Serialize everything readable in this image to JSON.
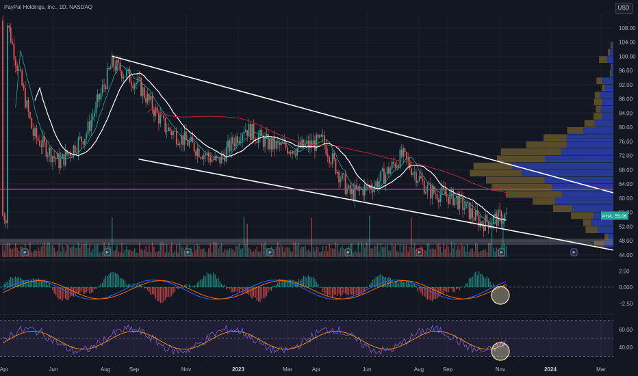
{
  "header": {
    "symbol_line": "PayPal Holdings, Inc., 1D, NASDAQ"
  },
  "currency_button": "USD",
  "price_tag": {
    "ticker": "PYPL",
    "price": "55.06"
  },
  "colors": {
    "background": "#131722",
    "up": "#26a69a",
    "down": "#ef5350",
    "trendline": "#ffffff",
    "horizontal_line": "#f23645",
    "ma_red": "#b22833",
    "profile_blue": "#2a3fa8",
    "profile_tan": "#6b5a2e",
    "rsi_line": "#7e57c2",
    "rsi_ma": "#ff9800",
    "macd_line": "#2962ff",
    "signal_line": "#ff6d00",
    "highlight_circle": "#f5e9b8"
  },
  "chart_data": [
    {
      "type": "candlestick",
      "title": "PayPal Holdings, Inc., 1D, NASDAQ",
      "x_ticks": [
        "Apr",
        "Jun",
        "Aug",
        "Sep",
        "Nov",
        "2023",
        "Mar",
        "Apr",
        "Jun",
        "Aug",
        "Sep",
        "Nov",
        "2024",
        "Mar"
      ],
      "y_ticks": [
        44.0,
        48.0,
        52.0,
        56.0,
        60.0,
        64.0,
        68.0,
        72.0,
        76.0,
        80.0,
        84.0,
        88.0,
        92.0,
        96.0,
        100.0,
        104.0,
        108.0
      ],
      "ylim": [
        43,
        112
      ],
      "approx_close_path": [
        {
          "date": "Apr 2022",
          "close": 110
        },
        {
          "date": "May 2022",
          "close": 78
        },
        {
          "date": "Jun 2022",
          "close": 70
        },
        {
          "date": "Jul 2022",
          "close": 78
        },
        {
          "date": "Aug 2022",
          "close": 98
        },
        {
          "date": "Sep 2022",
          "close": 92
        },
        {
          "date": "Oct 2022",
          "close": 80
        },
        {
          "date": "Nov 2022",
          "close": 75
        },
        {
          "date": "Dec 2022",
          "close": 70
        },
        {
          "date": "Jan 2023",
          "close": 80
        },
        {
          "date": "Feb 2023",
          "close": 75
        },
        {
          "date": "Mar 2023",
          "close": 74
        },
        {
          "date": "Apr 2023",
          "close": 76
        },
        {
          "date": "May 2023",
          "close": 61
        },
        {
          "date": "Jun 2023",
          "close": 64
        },
        {
          "date": "Jul 2023",
          "close": 72
        },
        {
          "date": "Aug 2023",
          "close": 62
        },
        {
          "date": "Sep 2023",
          "close": 60
        },
        {
          "date": "Oct 2023",
          "close": 53
        },
        {
          "date": "Nov 2023",
          "close": 55.06
        }
      ],
      "last_price": 55.06,
      "horizontal_level": 62.5,
      "trendlines": [
        {
          "name": "upper channel",
          "from": {
            "date": "Aug 2022",
            "price": 100
          },
          "to": {
            "date": "Mar 2024",
            "price": 61
          }
        },
        {
          "name": "lower channel",
          "from": {
            "date": "Sep 2022",
            "price": 71
          },
          "to": {
            "date": "Mar 2024",
            "price": 45
          }
        }
      ],
      "earnings_markers": [
        "E",
        "E",
        "E",
        "E",
        "E",
        "E",
        "E",
        "E"
      ]
    },
    {
      "type": "line",
      "name_hint": "MACD pane",
      "y_ticks": [
        2.5,
        0.0,
        -2.5
      ],
      "ylim": [
        -4,
        4
      ]
    },
    {
      "type": "line",
      "name_hint": "RSI pane",
      "y_ticks": [
        60.0,
        40.0
      ],
      "ylim": [
        25,
        75
      ],
      "band": [
        30,
        70
      ]
    }
  ]
}
